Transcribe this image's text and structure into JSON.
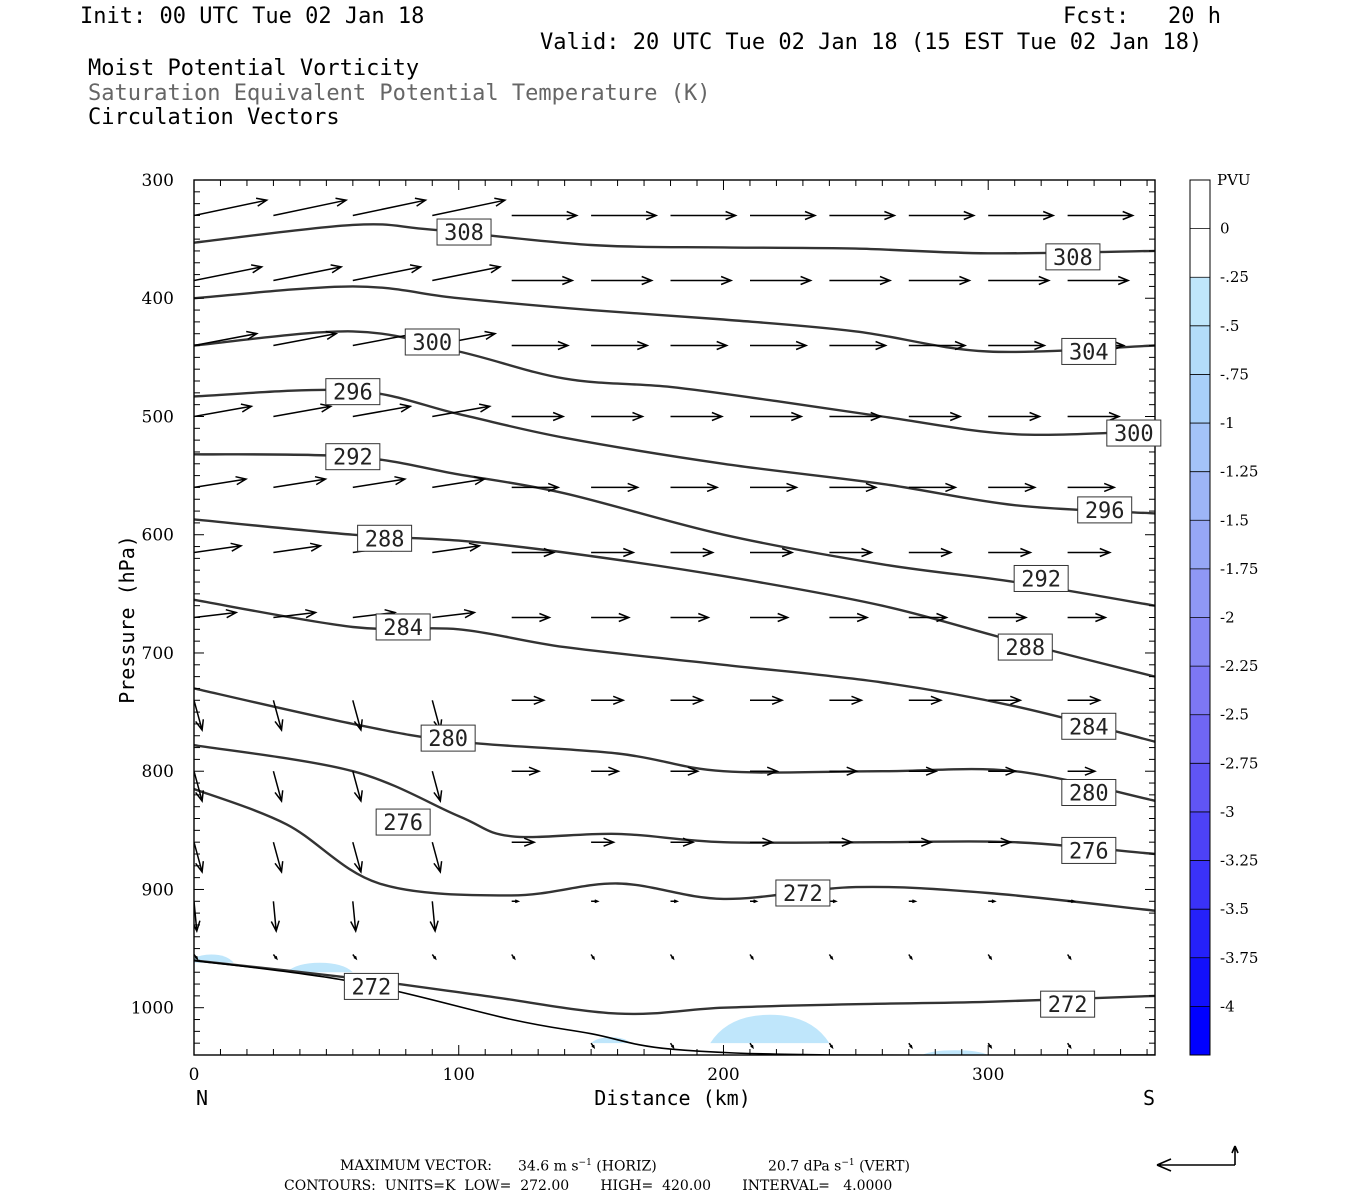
{
  "header": {
    "init": "Init: 00 UTC Tue 02 Jan 18",
    "fcst_label": "Fcst:",
    "fcst_value": "20 h",
    "valid": "Valid: 20 UTC Tue 02 Jan 18 (15 EST Tue 02 Jan 18)",
    "field1": "Moist Potential Vorticity",
    "field2": "Saturation Equivalent Potential Temperature (K)",
    "field3": "Circulation Vectors"
  },
  "footer": {
    "max_vector_label": "MAXIMUM VECTOR:",
    "max_vector_horiz": "34.6 m s",
    "horiz_tag": "(HORIZ)",
    "max_vector_vert": "20.7 dPa s",
    "vert_tag": "(VERT)",
    "contours": "CONTOURS:  UNITS=K  LOW=  272.00       HIGH=  420.00       INTERVAL=   4.0000"
  },
  "colors": {
    "contour": "#333333",
    "pv_light": "#bfe6fb",
    "pv_bottom": "#0000ff"
  },
  "chart_data": {
    "type": "contour",
    "xlabel": "Distance (km)",
    "ylabel": "Pressure (hPa)",
    "xlim": [
      0,
      363
    ],
    "ylim": [
      1040,
      300
    ],
    "y_scale": "linear",
    "x_ticks": [
      0,
      100,
      200,
      300
    ],
    "y_ticks": [
      300,
      400,
      500,
      600,
      700,
      800,
      900,
      1000
    ],
    "x_end_labels": {
      "left": "N",
      "right": "S"
    },
    "colorbar": {
      "title": "PVU",
      "labels": [
        "0",
        "-.25",
        "-.5",
        "-.75",
        "-1",
        "-1.25",
        "-1.5",
        "-1.75",
        "-2",
        "-2.25",
        "-2.5",
        "-2.75",
        "-3",
        "-3.25",
        "-3.5",
        "-3.75",
        "-4"
      ],
      "colors": [
        "#ffffff",
        "#ffffff",
        "#bfe6fb",
        "#b3ddfa",
        "#a8d0f9",
        "#a3c3f8",
        "#9db5f7",
        "#96a7f6",
        "#8f98f5",
        "#8788f4",
        "#7d77f4",
        "#7066f4",
        "#6055f5",
        "#4d42f6",
        "#3a32f8",
        "#2521fa",
        "#1210fc",
        "#0000ff"
      ]
    },
    "contours": [
      {
        "level": "308",
        "points": [
          [
            0,
            353
          ],
          [
            60,
            338
          ],
          [
            90,
            342
          ],
          [
            150,
            355
          ],
          [
            200,
            357
          ],
          [
            250,
            358
          ],
          [
            300,
            362
          ],
          [
            363,
            360
          ]
        ],
        "labels": [
          [
            102,
            344
          ],
          [
            332,
            365
          ]
        ]
      },
      {
        "level": "304",
        "points": [
          [
            0,
            400
          ],
          [
            60,
            390
          ],
          [
            100,
            400
          ],
          [
            150,
            410
          ],
          [
            200,
            418
          ],
          [
            250,
            428
          ],
          [
            300,
            445
          ],
          [
            363,
            440
          ]
        ],
        "labels": [
          [
            338,
            445
          ]
        ]
      },
      {
        "level": "300",
        "points": [
          [
            0,
            440
          ],
          [
            60,
            428
          ],
          [
            100,
            445
          ],
          [
            140,
            468
          ],
          [
            180,
            475
          ],
          [
            220,
            487
          ],
          [
            260,
            500
          ],
          [
            310,
            515
          ],
          [
            363,
            512
          ]
        ],
        "labels": [
          [
            90,
            437
          ],
          [
            355,
            514
          ]
        ]
      },
      {
        "level": "296",
        "points": [
          [
            0,
            483
          ],
          [
            60,
            478
          ],
          [
            100,
            498
          ],
          [
            140,
            518
          ],
          [
            200,
            540
          ],
          [
            260,
            557
          ],
          [
            310,
            575
          ],
          [
            363,
            582
          ]
        ],
        "labels": [
          [
            60,
            479
          ],
          [
            344,
            579
          ]
        ]
      },
      {
        "level": "292",
        "points": [
          [
            0,
            532
          ],
          [
            60,
            534
          ],
          [
            100,
            549
          ],
          [
            140,
            565
          ],
          [
            200,
            600
          ],
          [
            260,
            625
          ],
          [
            310,
            640
          ],
          [
            363,
            660
          ]
        ],
        "labels": [
          [
            60,
            534
          ],
          [
            320,
            637
          ]
        ]
      },
      {
        "level": "288",
        "points": [
          [
            0,
            587
          ],
          [
            60,
            600
          ],
          [
            100,
            605
          ],
          [
            140,
            615
          ],
          [
            200,
            635
          ],
          [
            260,
            660
          ],
          [
            310,
            690
          ],
          [
            363,
            720
          ]
        ],
        "labels": [
          [
            72,
            603
          ],
          [
            314,
            695
          ]
        ]
      },
      {
        "level": "284",
        "points": [
          [
            0,
            655
          ],
          [
            60,
            678
          ],
          [
            100,
            680
          ],
          [
            140,
            695
          ],
          [
            200,
            710
          ],
          [
            260,
            725
          ],
          [
            310,
            745
          ],
          [
            363,
            775
          ]
        ],
        "labels": [
          [
            79,
            678
          ],
          [
            338,
            762
          ]
        ]
      },
      {
        "level": "280",
        "points": [
          [
            0,
            730
          ],
          [
            60,
            760
          ],
          [
            100,
            775
          ],
          [
            160,
            785
          ],
          [
            200,
            800
          ],
          [
            260,
            800
          ],
          [
            310,
            800
          ],
          [
            363,
            825
          ]
        ],
        "labels": [
          [
            96,
            772
          ],
          [
            338,
            818
          ]
        ]
      },
      {
        "level": "276",
        "points": [
          [
            0,
            778
          ],
          [
            60,
            800
          ],
          [
            100,
            838
          ],
          [
            120,
            855
          ],
          [
            160,
            853
          ],
          [
            200,
            860
          ],
          [
            260,
            860
          ],
          [
            310,
            860
          ],
          [
            363,
            870
          ]
        ],
        "labels": [
          [
            79,
            843
          ],
          [
            338,
            867
          ]
        ]
      },
      {
        "level": "272",
        "points": [
          [
            0,
            815
          ],
          [
            35,
            845
          ],
          [
            70,
            895
          ],
          [
            120,
            905
          ],
          [
            160,
            895
          ],
          [
            200,
            908
          ],
          [
            250,
            898
          ],
          [
            300,
            903
          ],
          [
            363,
            918
          ]
        ],
        "labels": [
          [
            230,
            903
          ]
        ]
      },
      {
        "level": "272",
        "points": [
          [
            0,
            960
          ],
          [
            60,
            975
          ],
          [
            110,
            990
          ],
          [
            160,
            1005
          ],
          [
            200,
            1000
          ],
          [
            250,
            997
          ],
          [
            300,
            995
          ],
          [
            363,
            990
          ]
        ],
        "labels": [
          [
            67,
            982
          ],
          [
            330,
            997
          ]
        ]
      }
    ],
    "terrain": [
      [
        0,
        960
      ],
      [
        60,
        978
      ],
      [
        120,
        1010
      ],
      [
        150,
        1022
      ],
      [
        180,
        1035
      ],
      [
        240,
        1040
      ],
      [
        363,
        1040
      ]
    ],
    "pv_patches": [
      {
        "x": [
          -2,
          15
        ],
        "p_top": 955,
        "p_base": 962
      },
      {
        "x": [
          35,
          60
        ],
        "p_top": 962,
        "p_base": 970
      },
      {
        "x": [
          150,
          165
        ],
        "p_top": 1025,
        "p_base": 1030
      },
      {
        "x": [
          195,
          240
        ],
        "p_top": 1006,
        "p_base": 1030
      },
      {
        "x": [
          275,
          300
        ],
        "p_top": 1036,
        "p_base": 1040
      }
    ]
  }
}
